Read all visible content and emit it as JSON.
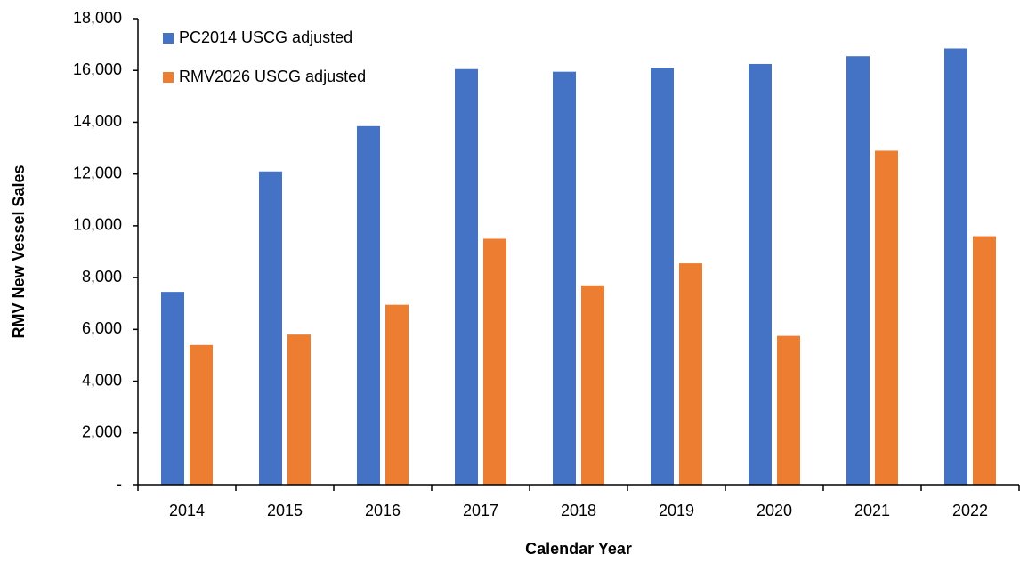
{
  "chart_data": {
    "type": "bar",
    "x_label": "Calendar Year",
    "y_label": "RMV New Vessel Sales",
    "categories": [
      "2014",
      "2015",
      "2016",
      "2017",
      "2018",
      "2019",
      "2020",
      "2021",
      "2022"
    ],
    "series": [
      {
        "name": "PC2014 USCG adjusted",
        "color": "#4472c4",
        "values": [
          7450,
          12100,
          13850,
          16050,
          15950,
          16100,
          16250,
          16550,
          16850
        ]
      },
      {
        "name": "RMV2026 USCG adjusted",
        "color": "#ed7d31",
        "values": [
          5400,
          5800,
          6950,
          9500,
          7700,
          8550,
          5750,
          12900,
          9600
        ]
      }
    ],
    "ylim": [
      0,
      18000
    ],
    "yticks": [
      {
        "value": 0,
        "label": "-"
      },
      {
        "value": 2000,
        "label": "2,000"
      },
      {
        "value": 4000,
        "label": "4,000"
      },
      {
        "value": 6000,
        "label": "6,000"
      },
      {
        "value": 8000,
        "label": "8,000"
      },
      {
        "value": 10000,
        "label": "10,000"
      },
      {
        "value": 12000,
        "label": "12,000"
      },
      {
        "value": 14000,
        "label": "14,000"
      },
      {
        "value": 16000,
        "label": "16,000"
      },
      {
        "value": 18000,
        "label": "18,000"
      }
    ],
    "grid": false,
    "legend": "upper left"
  }
}
